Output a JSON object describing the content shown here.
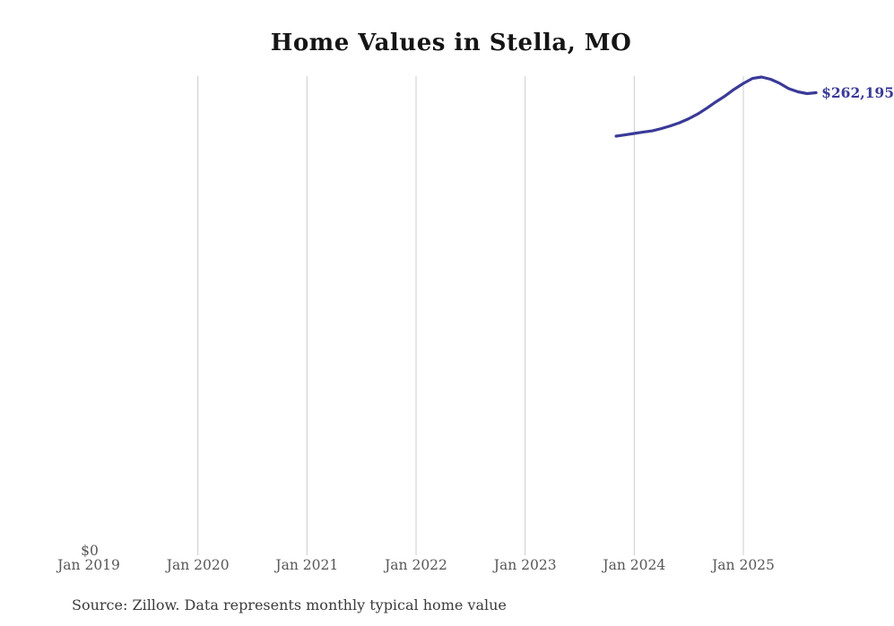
{
  "page": {
    "background_color": "#ffffff"
  },
  "chart_data": {
    "type": "line",
    "title": "Home Values in Stella, MO",
    "source_note": "Source: Zillow. Data represents monthly typical home value",
    "end_label": "$262,195",
    "colors": {
      "line": "#3a3a98",
      "end_label": "#3a3a98",
      "gridline": "#cccccc",
      "tick_text": "#575757",
      "title_text": "#151515",
      "source_text": "#3b3b3b"
    },
    "x_axis": {
      "tick_labels": [
        "Jan 2019",
        "Jan 2020",
        "Jan 2021",
        "Jan 2022",
        "Jan 2023",
        "Jan 2024",
        "Jan 2025"
      ],
      "gridline_labels": [
        "Jan 2020",
        "Jan 2021",
        "Jan 2022",
        "Jan 2023",
        "Jan 2024",
        "Jan 2025"
      ],
      "start": "Jan 2019",
      "end": "Sep 2025"
    },
    "y_axis": {
      "zero_label": "$0",
      "ylim": [
        0,
        271600
      ],
      "grid": "vertical-only"
    },
    "series": [
      {
        "name": "Monthly typical home value",
        "color": "#3a3a98",
        "points": [
          {
            "date": "Nov 2023",
            "value": 237600
          },
          {
            "date": "Dec 2023",
            "value": 238300
          },
          {
            "date": "Jan 2024",
            "value": 239100
          },
          {
            "date": "Feb 2024",
            "value": 239900
          },
          {
            "date": "Mar 2024",
            "value": 240600
          },
          {
            "date": "Apr 2024",
            "value": 241900
          },
          {
            "date": "May 2024",
            "value": 243400
          },
          {
            "date": "Jun 2024",
            "value": 245200
          },
          {
            "date": "Jul 2024",
            "value": 247500
          },
          {
            "date": "Aug 2024",
            "value": 250200
          },
          {
            "date": "Sep 2024",
            "value": 253500
          },
          {
            "date": "Oct 2024",
            "value": 257100
          },
          {
            "date": "Nov 2024",
            "value": 260400
          },
          {
            "date": "Dec 2024",
            "value": 264200
          },
          {
            "date": "Jan 2025",
            "value": 267500
          },
          {
            "date": "Feb 2025",
            "value": 270300
          },
          {
            "date": "Mar 2025",
            "value": 271100
          },
          {
            "date": "Apr 2025",
            "value": 269800
          },
          {
            "date": "May 2025",
            "value": 267500
          },
          {
            "date": "Jun 2025",
            "value": 264500
          },
          {
            "date": "Jul 2025",
            "value": 262700
          },
          {
            "date": "Aug 2025",
            "value": 261700
          },
          {
            "date": "Sep 2025",
            "value": 262195
          }
        ]
      }
    ]
  }
}
